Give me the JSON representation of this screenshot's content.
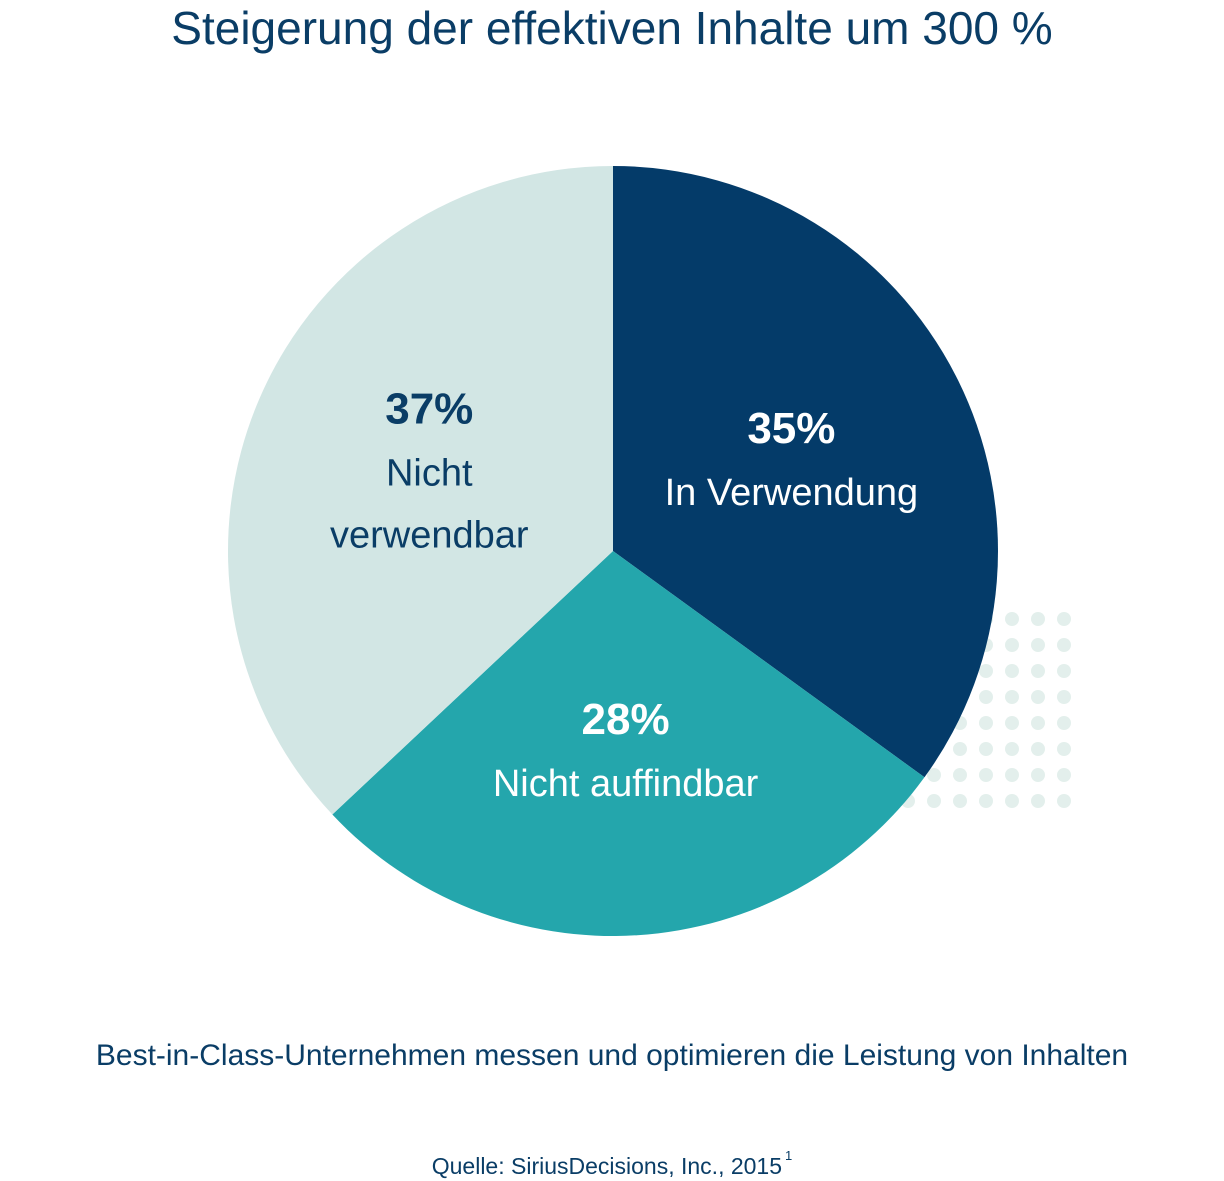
{
  "title": "Steigerung der effektiven Inhalte um 300 %",
  "caption": "Best-in-Class-Unternehmen messen und optimieren die Leistung von Inhalten",
  "source": {
    "text": "Quelle: SiriusDecisions, Inc., 2015",
    "footnote": "1"
  },
  "colors": {
    "title_text": "#0a3d66",
    "dots": "#e3efec"
  },
  "chart_data": {
    "type": "pie",
    "start": "12 o'clock",
    "direction": "clockwise",
    "slices": [
      {
        "value": 35,
        "value_label": "35%",
        "label_lines": [
          "In Verwendung"
        ],
        "color": "#043b69",
        "text_color": "#ffffff"
      },
      {
        "value": 28,
        "value_label": "28%",
        "label_lines": [
          "Nicht auffindbar"
        ],
        "color": "#24a6ac",
        "text_color": "#ffffff"
      },
      {
        "value": 37,
        "value_label": "37%",
        "label_lines": [
          "Nicht",
          "verwendbar"
        ],
        "color": "#d2e6e4",
        "text_color": "#0a3d66"
      }
    ]
  }
}
